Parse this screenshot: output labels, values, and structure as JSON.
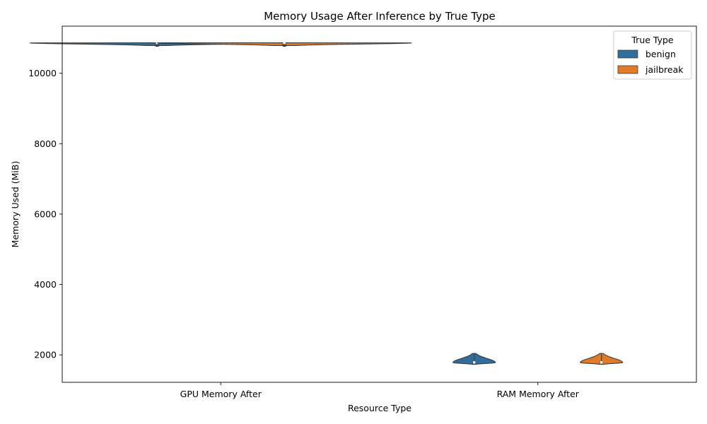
{
  "chart_data": {
    "type": "violin",
    "title": "Memory Usage After Inference by True Type",
    "xlabel": "Resource Type",
    "ylabel": "Memory Used (MiB)",
    "categories": [
      "GPU Memory After",
      "RAM Memory After"
    ],
    "ylim": [
      1220,
      11340
    ],
    "yticks": [
      2000,
      4000,
      6000,
      8000,
      10000
    ],
    "grid": false,
    "legend": {
      "title": "True Type",
      "placement": "top-right",
      "entries": [
        "benign",
        "jailbreak"
      ]
    },
    "series": [
      {
        "name": "benign",
        "color": "#2f6f9e",
        "values": [
          {
            "category": "GPU Memory After",
            "min": 10790,
            "q1": 10860,
            "median": 10862,
            "q3": 10864,
            "max": 10866,
            "mode": 10864
          },
          {
            "category": "RAM Memory After",
            "min": 1730,
            "q1": 1775,
            "median": 1785,
            "q3": 1800,
            "max": 2040,
            "mode": 1780
          }
        ]
      },
      {
        "name": "jailbreak",
        "color": "#e07b2a",
        "values": [
          {
            "category": "GPU Memory After",
            "min": 10790,
            "q1": 10860,
            "median": 10862,
            "q3": 10864,
            "max": 10866,
            "mode": 10864
          },
          {
            "category": "RAM Memory After",
            "min": 1730,
            "q1": 1775,
            "median": 1785,
            "q3": 1800,
            "max": 2040,
            "mode": 1780
          }
        ]
      }
    ]
  }
}
